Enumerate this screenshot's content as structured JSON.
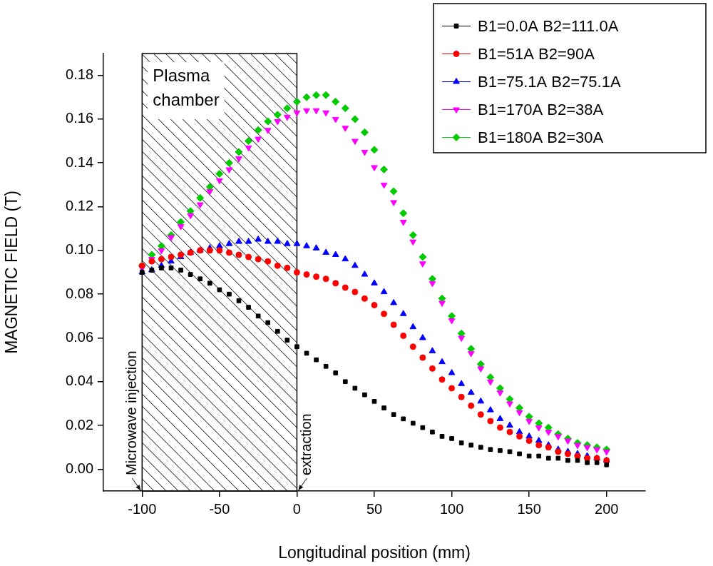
{
  "chart_data": {
    "type": "scatter",
    "x_label": "Longitudinal position (mm)",
    "y_label": "MAGNETIC FIELD (T)",
    "xlim": [
      -125,
      225
    ],
    "xticks": [
      -100,
      -50,
      0,
      50,
      100,
      150,
      200
    ],
    "ylim": [
      -0.01,
      0.19
    ],
    "yticks": [
      {
        "value": 0,
        "label": "0.00"
      },
      {
        "value": 0.02,
        "label": "0.02"
      },
      {
        "value": 0.04,
        "label": "0.04"
      },
      {
        "value": 0.06,
        "label": "0.06"
      },
      {
        "value": 0.08,
        "label": "0.08"
      },
      {
        "value": 0.1,
        "label": "0.10"
      },
      {
        "value": 0.12,
        "label": "0.12"
      },
      {
        "value": 0.14,
        "label": "0.14"
      },
      {
        "value": 0.16,
        "label": "0.16"
      },
      {
        "value": 0.18,
        "label": "0.18"
      }
    ],
    "grid": false,
    "legend": "upper right",
    "annotations": [
      {
        "type": "region",
        "text": "Plasma chamber",
        "x": [
          -100,
          0
        ]
      },
      {
        "type": "arrow_text",
        "text": "Microwave injection",
        "x": -100
      },
      {
        "type": "arrow_text",
        "text": "extraction",
        "x": 0
      }
    ],
    "x": [
      -100,
      -93.75,
      -87.5,
      -81.25,
      -75,
      -68.75,
      -62.5,
      -56.25,
      -50,
      -43.75,
      -37.5,
      -31.25,
      -25,
      -18.75,
      -12.5,
      -6.25,
      0,
      6.25,
      12.5,
      18.75,
      25,
      31.25,
      37.5,
      43.75,
      50,
      56.25,
      62.5,
      68.75,
      75,
      81.25,
      87.5,
      93.75,
      100,
      106.25,
      112.5,
      118.75,
      125,
      131.25,
      137.5,
      143.75,
      150,
      156.25,
      162.5,
      168.75,
      175,
      181.25,
      187.5,
      193.75,
      200
    ],
    "series": [
      {
        "name": "B1=0.0A B2=111.0A",
        "color": "#000000",
        "marker": "square",
        "values": [
          0.09,
          0.091,
          0.092,
          0.092,
          0.091,
          0.089,
          0.087,
          0.085,
          0.082,
          0.08,
          0.077,
          0.074,
          0.07,
          0.067,
          0.063,
          0.059,
          0.056,
          0.053,
          0.05,
          0.047,
          0.044,
          0.04,
          0.037,
          0.034,
          0.031,
          0.028,
          0.025,
          0.023,
          0.021,
          0.019,
          0.017,
          0.015,
          0.014,
          0.012,
          0.011,
          0.01,
          0.009,
          0.0085,
          0.008,
          0.007,
          0.006,
          0.006,
          0.005,
          0.005,
          0.004,
          0.004,
          0.003,
          0.003,
          0.002
        ]
      },
      {
        "name": "B1=51A B2=90A",
        "color": "#ff0000",
        "marker": "circle",
        "values": [
          0.093,
          0.095,
          0.096,
          0.097,
          0.098,
          0.099,
          0.1,
          0.1,
          0.1,
          0.099,
          0.098,
          0.097,
          0.096,
          0.095,
          0.093,
          0.092,
          0.09,
          0.089,
          0.088,
          0.087,
          0.085,
          0.083,
          0.081,
          0.078,
          0.075,
          0.071,
          0.066,
          0.061,
          0.056,
          0.051,
          0.046,
          0.041,
          0.037,
          0.033,
          0.029,
          0.025,
          0.022,
          0.019,
          0.017,
          0.015,
          0.013,
          0.011,
          0.01,
          0.008,
          0.007,
          0.006,
          0.005,
          0.005,
          0.004
        ]
      },
      {
        "name": "B1=75.1A B2=75.1A",
        "color": "#0000ff",
        "marker": "triangle",
        "values": [
          0.09,
          0.091,
          0.093,
          0.095,
          0.097,
          0.099,
          0.1,
          0.101,
          0.102,
          0.103,
          0.104,
          0.104,
          0.105,
          0.104,
          0.104,
          0.103,
          0.103,
          0.102,
          0.101,
          0.099,
          0.098,
          0.096,
          0.093,
          0.089,
          0.085,
          0.081,
          0.076,
          0.071,
          0.065,
          0.06,
          0.054,
          0.049,
          0.044,
          0.039,
          0.035,
          0.031,
          0.027,
          0.023,
          0.02,
          0.017,
          0.015,
          0.013,
          0.011,
          0.009,
          0.008,
          0.007,
          0.006,
          0.005,
          0.004
        ]
      },
      {
        "name": "B1=170A B2=38A",
        "color": "#ff00ff",
        "marker": "triangle_down",
        "values": [
          0.092,
          0.096,
          0.1,
          0.106,
          0.111,
          0.116,
          0.121,
          0.127,
          0.132,
          0.137,
          0.142,
          0.147,
          0.151,
          0.155,
          0.159,
          0.161,
          0.163,
          0.164,
          0.164,
          0.163,
          0.16,
          0.156,
          0.15,
          0.145,
          0.138,
          0.13,
          0.122,
          0.113,
          0.104,
          0.094,
          0.085,
          0.076,
          0.068,
          0.06,
          0.053,
          0.046,
          0.04,
          0.035,
          0.03,
          0.026,
          0.022,
          0.019,
          0.017,
          0.015,
          0.013,
          0.011,
          0.01,
          0.009,
          0.008
        ]
      },
      {
        "name": "B1=180A B2=30A",
        "color": "#00cc00",
        "marker": "diamond",
        "values": [
          0.093,
          0.098,
          0.102,
          0.107,
          0.113,
          0.118,
          0.124,
          0.129,
          0.135,
          0.14,
          0.145,
          0.15,
          0.155,
          0.159,
          0.162,
          0.165,
          0.168,
          0.17,
          0.171,
          0.171,
          0.168,
          0.165,
          0.16,
          0.154,
          0.146,
          0.137,
          0.127,
          0.117,
          0.107,
          0.097,
          0.087,
          0.078,
          0.07,
          0.062,
          0.055,
          0.048,
          0.042,
          0.037,
          0.032,
          0.028,
          0.024,
          0.021,
          0.019,
          0.016,
          0.014,
          0.012,
          0.011,
          0.01,
          0.009
        ]
      }
    ]
  }
}
